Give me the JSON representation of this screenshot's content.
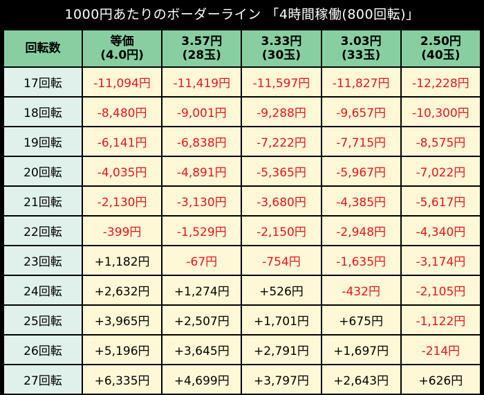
{
  "title": "1000円あたりのボーダーライン 「4時間稼働(800回転)」",
  "colors": {
    "negative": "#e8141e",
    "positive": "#000000",
    "header_bg": "#87cfa1",
    "rowhead_bg": "#dff1ea",
    "cell_bg": "#fff8d6"
  },
  "table": {
    "corner": "回転数",
    "columns": [
      {
        "line1": "等価",
        "line2": "(4.0円)"
      },
      {
        "line1": "3.57円",
        "line2": "(28玉)"
      },
      {
        "line1": "3.33円",
        "line2": "(30玉)"
      },
      {
        "line1": "3.03円",
        "line2": "(33玉)"
      },
      {
        "line1": "2.50円",
        "line2": "(40玉)"
      }
    ],
    "rows": [
      {
        "label": "17回転",
        "values": [
          "-11,094円",
          "-11,419円",
          "-11,597円",
          "-11,827円",
          "-12,228円"
        ]
      },
      {
        "label": "18回転",
        "values": [
          "-8,480円",
          "-9,001円",
          "-9,288円",
          "-9,657円",
          "-10,300円"
        ]
      },
      {
        "label": "19回転",
        "values": [
          "-6,141円",
          "-6,838円",
          "-7,222円",
          "-7,715円",
          "-8,575円"
        ]
      },
      {
        "label": "20回転",
        "values": [
          "-4,035円",
          "-4,891円",
          "-5,365円",
          "-5,967円",
          "-7,022円"
        ]
      },
      {
        "label": "21回転",
        "values": [
          "-2,130円",
          "-3,130円",
          "-3,680円",
          "-4,385円",
          "-5,617円"
        ]
      },
      {
        "label": "22回転",
        "values": [
          "-399円",
          "-1,529円",
          "-2,150円",
          "-2,948円",
          "-4,340円"
        ]
      },
      {
        "label": "23回転",
        "values": [
          "+1,182円",
          "-67円",
          "-754円",
          "-1,635円",
          "-3,174円"
        ]
      },
      {
        "label": "24回転",
        "values": [
          "+2,632円",
          "+1,274円",
          "+526円",
          "-432円",
          "-2,105円"
        ]
      },
      {
        "label": "25回転",
        "values": [
          "+3,965円",
          "+2,507円",
          "+1,701円",
          "+675円",
          "-1,122円"
        ]
      },
      {
        "label": "26回転",
        "values": [
          "+5,196円",
          "+3,645円",
          "+2,791円",
          "+1,697円",
          "-214円"
        ]
      },
      {
        "label": "27回転",
        "values": [
          "+6,335円",
          "+4,699円",
          "+3,797円",
          "+2,643円",
          "+626円"
        ]
      }
    ]
  }
}
